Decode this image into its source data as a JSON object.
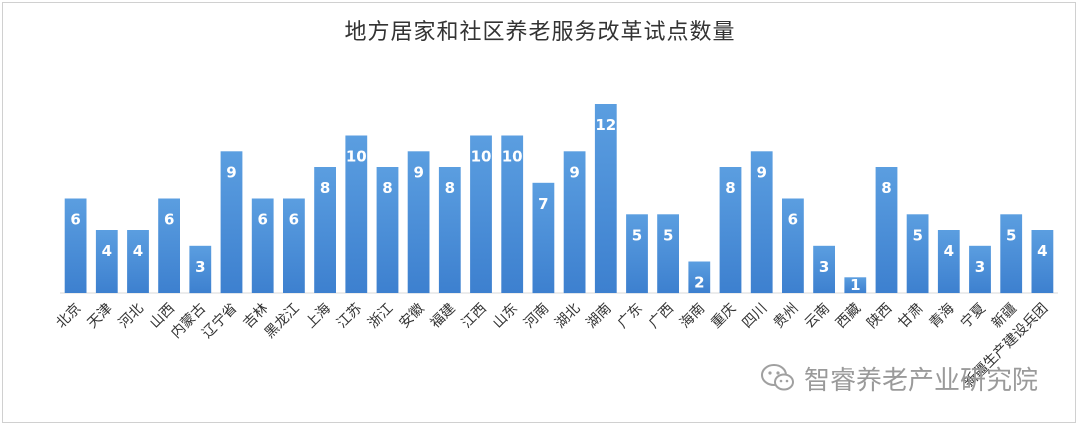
{
  "chart_data": {
    "type": "bar",
    "title": "地方居家和社区养老服务改革试点数量",
    "xlabel": "",
    "ylabel": "",
    "ylim": [
      0,
      12
    ],
    "grid": false,
    "legend": "none",
    "categories": [
      "北京",
      "天津",
      "河北",
      "山西",
      "内蒙古",
      "辽宁省",
      "吉林",
      "黑龙江",
      "上海",
      "江苏",
      "浙江",
      "安徽",
      "福建",
      "江西",
      "山东",
      "河南",
      "湖北",
      "湖南",
      "广东",
      "广西",
      "海南",
      "重庆",
      "四川",
      "贵州",
      "云南",
      "西藏",
      "陕西",
      "甘肃",
      "青海",
      "宁夏",
      "新疆",
      "新疆生产建设兵团"
    ],
    "values": [
      6,
      4,
      4,
      6,
      3,
      9,
      6,
      6,
      8,
      10,
      8,
      9,
      8,
      10,
      10,
      7,
      9,
      12,
      5,
      5,
      2,
      8,
      9,
      6,
      3,
      1,
      8,
      5,
      4,
      3,
      5,
      4
    ],
    "bar_color": "#4a8fd8",
    "label_color": "#ffffff"
  },
  "watermark": {
    "text": "智睿养老产业研究院",
    "icon": "wechat-icon"
  }
}
